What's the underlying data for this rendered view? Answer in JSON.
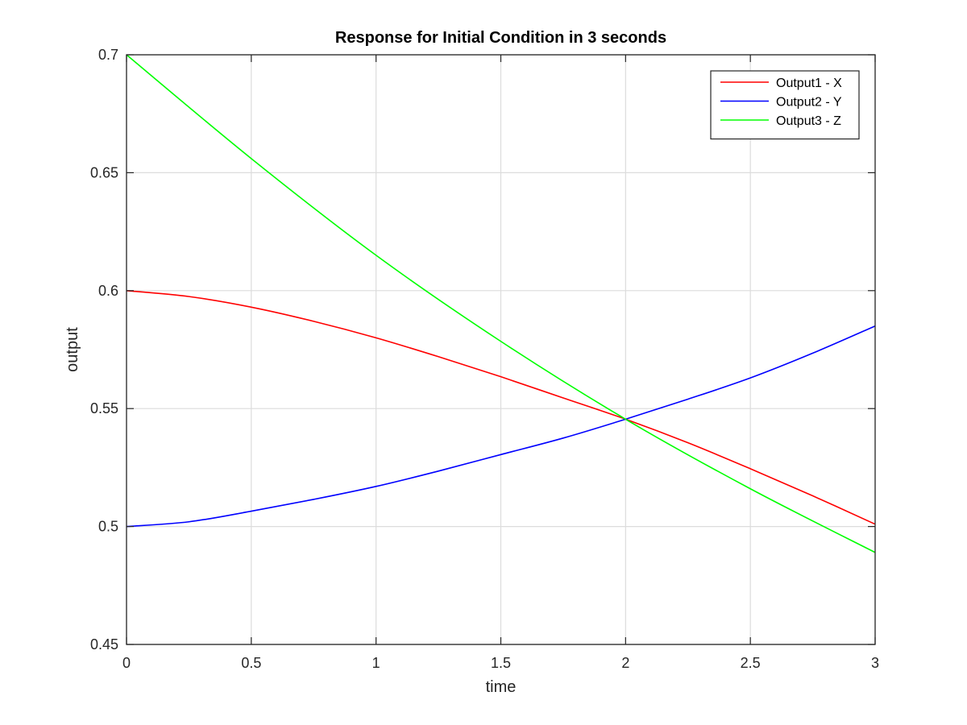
{
  "chart_data": {
    "type": "line",
    "title": "Response for Initial Condition in 3 seconds",
    "xlabel": "time",
    "ylabel": "output",
    "xlim": [
      0,
      3
    ],
    "ylim": [
      0.45,
      0.7
    ],
    "xticks": [
      0,
      0.5,
      1,
      1.5,
      2,
      2.5,
      3
    ],
    "yticks": [
      0.45,
      0.5,
      0.55,
      0.6,
      0.65,
      0.7
    ],
    "xtick_labels": [
      "0",
      "0.5",
      "1",
      "1.5",
      "2",
      "2.5",
      "3"
    ],
    "ytick_labels": [
      "0.45",
      "0.5",
      "0.55",
      "0.6",
      "0.65",
      "0.7"
    ],
    "grid": true,
    "legend_position": "top-right",
    "series": [
      {
        "name": "Output1 - X",
        "color": "#ff0000",
        "x": [
          0,
          0.25,
          0.5,
          0.75,
          1,
          1.25,
          1.5,
          1.75,
          2,
          2.25,
          2.5,
          2.75,
          3
        ],
        "values": [
          0.6,
          0.5975,
          0.593,
          0.587,
          0.58,
          0.572,
          0.5635,
          0.5545,
          0.5455,
          0.5355,
          0.5245,
          0.513,
          0.501
        ]
      },
      {
        "name": "Output2 - Y",
        "color": "#0000ff",
        "x": [
          0,
          0.25,
          0.5,
          0.75,
          1,
          1.25,
          1.5,
          1.75,
          2,
          2.25,
          2.5,
          2.75,
          3
        ],
        "values": [
          0.5,
          0.502,
          0.5065,
          0.5115,
          0.517,
          0.5235,
          0.5305,
          0.5375,
          0.5455,
          0.554,
          0.563,
          0.5735,
          0.585
        ]
      },
      {
        "name": "Output3 - Z",
        "color": "#00ff00",
        "x": [
          0,
          0.5,
          1,
          1.5,
          2,
          2.5,
          3
        ],
        "values": [
          0.7,
          0.656,
          0.615,
          0.5785,
          0.5455,
          0.516,
          0.489
        ]
      }
    ]
  }
}
